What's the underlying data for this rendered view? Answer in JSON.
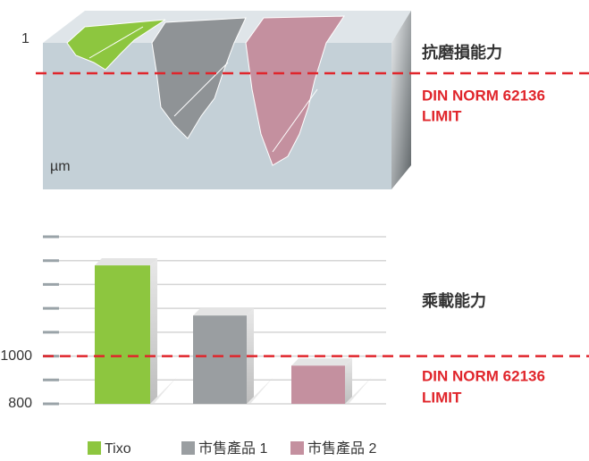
{
  "abrasion_panel": {
    "scale_label": "1",
    "unit": "µm",
    "title": "抗磨損能力",
    "limit_label": [
      "DIN NORM 62136",
      "LIMIT"
    ]
  },
  "chart_data": {
    "type": "bar",
    "title": "乘載能力",
    "categories": [
      "Tixo",
      "市售產品 1",
      "市售產品 2"
    ],
    "values": [
      1380,
      1170,
      960
    ],
    "colors": [
      "#8dc63f",
      "#9a9ea1",
      "#c4909f"
    ],
    "ylim": [
      800,
      1500
    ],
    "yticks": [
      800,
      {
        "value": 900,
        "label": null
      },
      1000,
      {
        "value": 1100,
        "label": null
      },
      {
        "value": 1200,
        "label": null
      },
      {
        "value": 1300,
        "label": null
      },
      {
        "value": 1400,
        "label": null
      },
      {
        "value": 1500,
        "label": null
      }
    ],
    "grid": true,
    "limit": 1000,
    "limit_label": [
      "DIN NORM 62136",
      "LIMIT"
    ]
  }
}
